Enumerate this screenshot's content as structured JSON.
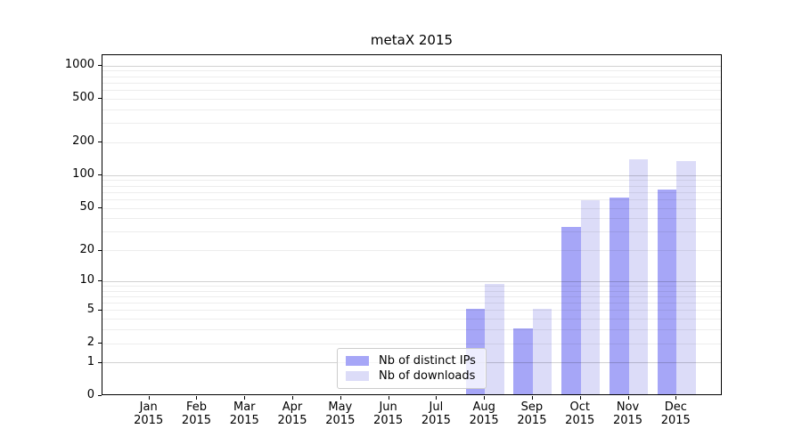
{
  "chart_data": {
    "type": "bar",
    "title": "metaX 2015",
    "year": "2015",
    "months": [
      "Jan",
      "Feb",
      "Mar",
      "Apr",
      "May",
      "Jun",
      "Jul",
      "Aug",
      "Sep",
      "Oct",
      "Nov",
      "Dec"
    ],
    "categories": [
      "Jan 2015",
      "Feb 2015",
      "Mar 2015",
      "Apr 2015",
      "May 2015",
      "Jun 2015",
      "Jul 2015",
      "Aug 2015",
      "Sep 2015",
      "Oct 2015",
      "Nov 2015",
      "Dec 2015"
    ],
    "series": [
      {
        "name": "Nb of distinct IPs",
        "color": "#a6a6f7",
        "values": [
          0,
          0,
          0,
          0,
          0,
          0,
          0,
          5,
          3,
          32,
          61,
          72
        ]
      },
      {
        "name": "Nb of downloads",
        "color": "#dcdcf8",
        "values": [
          0,
          0,
          0,
          0,
          0,
          0,
          0,
          9,
          5,
          57,
          135,
          130
        ]
      }
    ],
    "y_scale": "log1p",
    "y_ticks": [
      0,
      1,
      2,
      5,
      10,
      20,
      50,
      100,
      200,
      500,
      1000
    ],
    "y_minor_gridlines": [
      2,
      3,
      4,
      5,
      6,
      7,
      8,
      9,
      20,
      30,
      40,
      50,
      60,
      70,
      80,
      90,
      200,
      300,
      400,
      500,
      600,
      700,
      800,
      900
    ],
    "y_major_gridlines": [
      1,
      10,
      100,
      1000
    ],
    "ylim": [
      0,
      1259
    ],
    "xlabel": "",
    "ylabel": "",
    "grid": true,
    "legend_position": "lower center-left",
    "colors": {
      "major_grid": "rgba(0,0,0,0.18)",
      "minor_grid": "rgba(0,0,0,0.07)",
      "spine": "#000000",
      "legend_border": "#cccccc",
      "legend_background": "rgba(255,255,255,0.8)",
      "text": "#000000"
    }
  }
}
